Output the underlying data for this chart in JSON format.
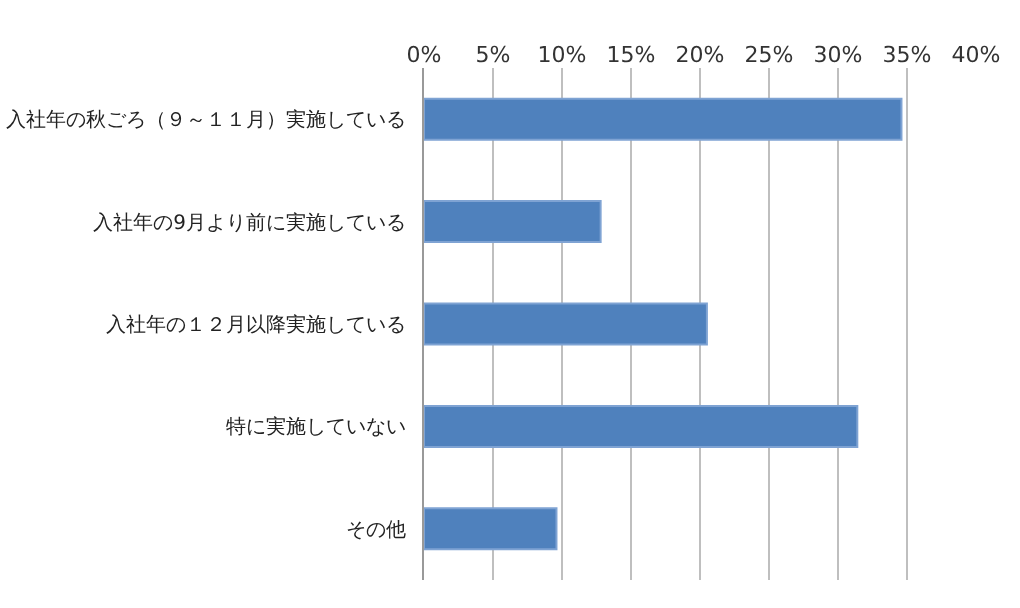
{
  "chart_data": {
    "type": "bar",
    "orientation": "horizontal",
    "categories": [
      "入社年の秋ごろ（９～１１月）実施している",
      "入社年の9月より前に実施している",
      "入社年の１２月以降実施している",
      "特に実施していない",
      "その他"
    ],
    "values": [
      34.6,
      12.8,
      20.5,
      31.4,
      9.6
    ],
    "color": "#4f81bd",
    "xlim": [
      0,
      40
    ],
    "xticks": [
      {
        "value": 0,
        "label": "0%"
      },
      {
        "value": 5,
        "label": "5%"
      },
      {
        "value": 10,
        "label": "10%"
      },
      {
        "value": 15,
        "label": "15%"
      },
      {
        "value": 20,
        "label": "20%"
      },
      {
        "value": 25,
        "label": "25%"
      },
      {
        "value": 30,
        "label": "30%"
      },
      {
        "value": 35,
        "label": "35%"
      },
      {
        "value": 40,
        "label": "40%"
      }
    ],
    "grid": "x",
    "legend": false
  }
}
